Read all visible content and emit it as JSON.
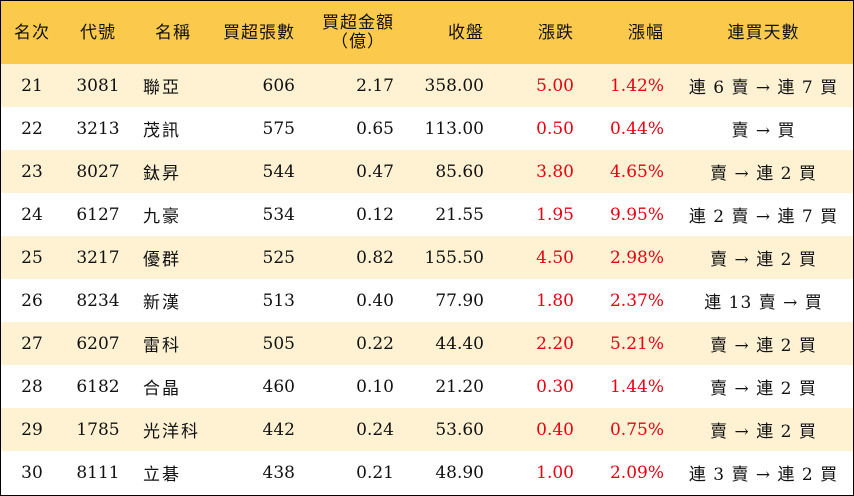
{
  "headers": {
    "rank": "名次",
    "code": "代號",
    "name": "名稱",
    "net_buy_lots": "買超張數",
    "net_buy_amount_line1": "買超金額",
    "net_buy_amount_line2": "（億）",
    "close": "收盤",
    "change": "漲跌",
    "change_pct": "漲幅",
    "streak": "連買天數"
  },
  "rows": [
    {
      "rank": "21",
      "code": "3081",
      "name": "聯亞",
      "lots": "606",
      "amount": "2.17",
      "close": "358.00",
      "change": "5.00",
      "pct": "1.42%",
      "streak": "連 6 賣 → 連 7 買"
    },
    {
      "rank": "22",
      "code": "3213",
      "name": "茂訊",
      "lots": "575",
      "amount": "0.65",
      "close": "113.00",
      "change": "0.50",
      "pct": "0.44%",
      "streak": "賣 → 買"
    },
    {
      "rank": "23",
      "code": "8027",
      "name": "鈦昇",
      "lots": "544",
      "amount": "0.47",
      "close": "85.60",
      "change": "3.80",
      "pct": "4.65%",
      "streak": "賣 → 連 2 買"
    },
    {
      "rank": "24",
      "code": "6127",
      "name": "九豪",
      "lots": "534",
      "amount": "0.12",
      "close": "21.55",
      "change": "1.95",
      "pct": "9.95%",
      "streak": "連 2 賣 → 連 7 買"
    },
    {
      "rank": "25",
      "code": "3217",
      "name": "優群",
      "lots": "525",
      "amount": "0.82",
      "close": "155.50",
      "change": "4.50",
      "pct": "2.98%",
      "streak": "賣 → 連 2 買"
    },
    {
      "rank": "26",
      "code": "8234",
      "name": "新漢",
      "lots": "513",
      "amount": "0.40",
      "close": "77.90",
      "change": "1.80",
      "pct": "2.37%",
      "streak": "連 13 賣 → 買"
    },
    {
      "rank": "27",
      "code": "6207",
      "name": "雷科",
      "lots": "505",
      "amount": "0.22",
      "close": "44.40",
      "change": "2.20",
      "pct": "5.21%",
      "streak": "賣 → 連 2 買"
    },
    {
      "rank": "28",
      "code": "6182",
      "name": "合晶",
      "lots": "460",
      "amount": "0.10",
      "close": "21.20",
      "change": "0.30",
      "pct": "1.44%",
      "streak": "賣 → 連 2 買"
    },
    {
      "rank": "29",
      "code": "1785",
      "name": "光洋科",
      "lots": "442",
      "amount": "0.24",
      "close": "53.60",
      "change": "0.40",
      "pct": "0.75%",
      "streak": "賣 → 連 2 買"
    },
    {
      "rank": "30",
      "code": "8111",
      "name": "立碁",
      "lots": "438",
      "amount": "0.21",
      "close": "48.90",
      "change": "1.00",
      "pct": "2.09%",
      "streak": "連 3 賣 → 連 2 買"
    }
  ],
  "colors": {
    "header_bg": "#fbc94b",
    "odd_row_bg": "#fef2d3",
    "even_row_bg": "#ffffff",
    "positive_change": "#e60012"
  }
}
